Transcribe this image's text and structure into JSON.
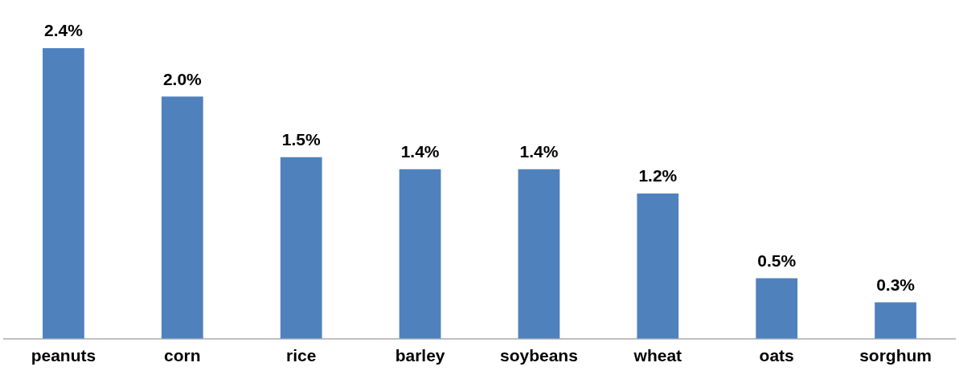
{
  "chart_data": {
    "type": "bar",
    "categories": [
      "peanuts",
      "corn",
      "rice",
      "barley",
      "soybeans",
      "wheat",
      "oats",
      "sorghum"
    ],
    "values": [
      2.4,
      2.0,
      1.5,
      1.4,
      1.4,
      1.2,
      0.5,
      0.3
    ],
    "value_labels": [
      "2.4%",
      "2.0%",
      "1.5%",
      "1.4%",
      "1.4%",
      "1.2%",
      "0.5%",
      "0.3%"
    ],
    "color": "#4f81bd",
    "grid": false,
    "legend": false
  }
}
